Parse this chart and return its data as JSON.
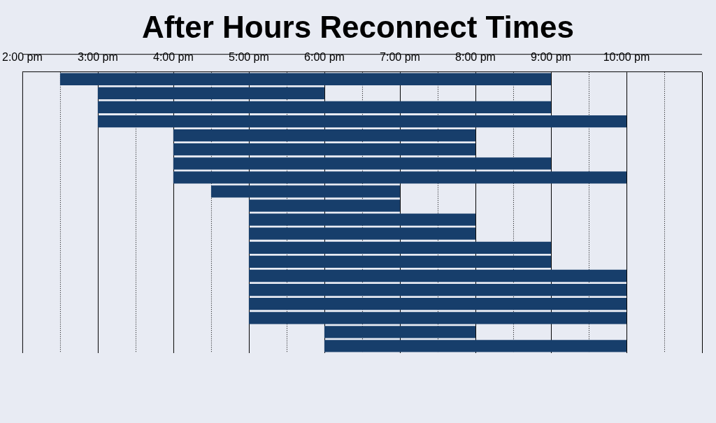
{
  "chart_data": {
    "type": "bar",
    "title": "After Hours Reconnect Times",
    "orientation": "horizontal",
    "categories": [
      null,
      null,
      null,
      null,
      null,
      null,
      null,
      null,
      null,
      null,
      null,
      null,
      null,
      null,
      null,
      null,
      null,
      null,
      null,
      null
    ],
    "base": [
      14.5,
      15,
      15,
      15,
      16,
      16,
      16,
      16,
      16.5,
      17,
      17,
      17,
      17,
      17,
      17,
      17,
      17,
      17,
      18,
      18
    ],
    "values": [
      6.5,
      3,
      6,
      7,
      4,
      4,
      5,
      6,
      2.5,
      2,
      3,
      3,
      4,
      4,
      5,
      5,
      5,
      5,
      2,
      4
    ],
    "color": "#173e6b",
    "xlim": [
      14,
      23
    ],
    "xticks": [
      {
        "value": 14,
        "label": "2:00 pm"
      },
      {
        "value": 14.5,
        "label": null
      },
      {
        "value": 15,
        "label": "3:00 pm"
      },
      {
        "value": 15.5,
        "label": null
      },
      {
        "value": 16,
        "label": "4:00 pm"
      },
      {
        "value": 16.5,
        "label": null
      },
      {
        "value": 17,
        "label": "5:00 pm"
      },
      {
        "value": 17.5,
        "label": null
      },
      {
        "value": 18,
        "label": "6:00 pm"
      },
      {
        "value": 18.5,
        "label": null
      },
      {
        "value": 19,
        "label": "7:00 pm"
      },
      {
        "value": 19.5,
        "label": null
      },
      {
        "value": 20,
        "label": "8:00 pm"
      },
      {
        "value": 20.5,
        "label": null
      },
      {
        "value": 21,
        "label": "9:00 pm"
      },
      {
        "value": 21.5,
        "label": null
      },
      {
        "value": 22,
        "label": "10:00 pm"
      },
      {
        "value": 22.5,
        "label": null
      },
      {
        "value": 23,
        "label": null
      }
    ],
    "grid": "x",
    "tick_labels": "x"
  }
}
